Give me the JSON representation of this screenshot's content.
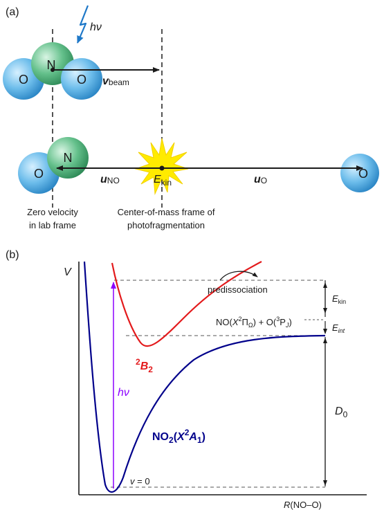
{
  "panel_a": {
    "label": "(a)",
    "photon": "hν",
    "atoms": {
      "O": "O",
      "N": "N"
    },
    "v_beam": {
      "sym": "v",
      "sub": "beam"
    },
    "u_NO": {
      "sym": "u",
      "sub": "NO"
    },
    "E_kin": {
      "sym": "E",
      "sub": "kin"
    },
    "u_O": {
      "sym": "u",
      "sub": "O"
    },
    "caption_left_1": "Zero velocity",
    "caption_left_2": "in lab frame",
    "caption_mid_1": "Center-of-mass frame of",
    "caption_mid_2": "photofragmentation"
  },
  "panel_b": {
    "label": "(b)",
    "y_axis": "V",
    "x_axis_italic": "R",
    "x_axis_rest": "(NO–O)",
    "predissociation": "predissociation",
    "excited_state": {
      "sup": "2",
      "base": "B",
      "sub": "2"
    },
    "ground_state": {
      "prefix": "NO",
      "sub": "2",
      "open": "(",
      "X": "X",
      "sup": "2",
      "A": "A",
      "asub": "1",
      "close": ")"
    },
    "photon": "hν",
    "v0": {
      "sym": "v",
      "rest": " = 0"
    },
    "asymptote": "NO(X ²Π_Ω) + O(³P_J)",
    "asym_parts": {
      "no": "NO(",
      "X": "X",
      "sup1": "2",
      "pi": "Π",
      "omega": "Ω",
      "plus": ") + O(",
      "sup2": "3",
      "P": "P",
      "J": "J",
      "close": ")"
    },
    "E_kin": {
      "sym": "E",
      "sub": "kin"
    },
    "E_int": {
      "sym": "E",
      "sub": "int"
    },
    "D0": {
      "sym": "D",
      "sub": "0"
    }
  },
  "colors": {
    "ground_curve": "#00008B",
    "excited_curve": "#E31A1C",
    "photon_arrow": "#8B00FF",
    "lightning": "#1E78C8",
    "O_atom": "#5BB2E8",
    "N_atom": "#4CAF7A",
    "flash": "#FFEB00"
  }
}
